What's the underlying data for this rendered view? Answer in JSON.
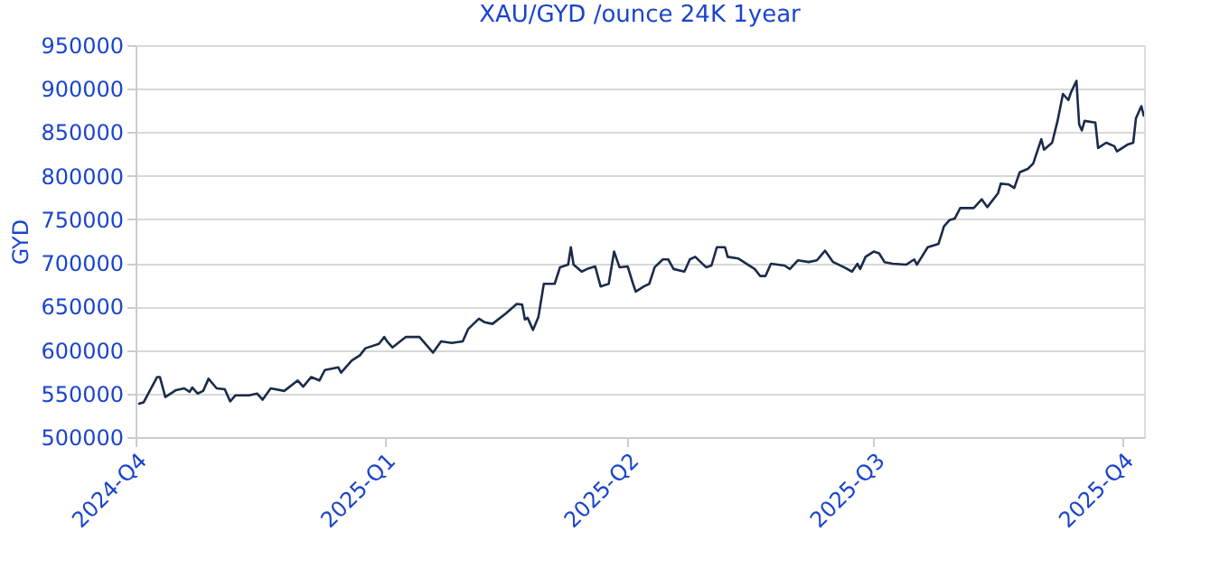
{
  "chart_data": {
    "type": "line",
    "title": "XAU/GYD /ounce 24K 1year",
    "ylabel": "GYD",
    "x": [
      "2024-10-02",
      "2024-10-04",
      "2024-10-09",
      "2024-10-10",
      "2024-10-12",
      "2024-10-16",
      "2024-10-19",
      "2024-10-21",
      "2024-10-22",
      "2024-10-24",
      "2024-10-26",
      "2024-10-28",
      "2024-10-31",
      "2024-11-03",
      "2024-11-05",
      "2024-11-07",
      "2024-11-12",
      "2024-11-15",
      "2024-11-17",
      "2024-11-20",
      "2024-11-25",
      "2024-11-30",
      "2024-12-02",
      "2024-12-05",
      "2024-12-08",
      "2024-12-10",
      "2024-12-15",
      "2024-12-16",
      "2024-12-20",
      "2024-12-23",
      "2024-12-25",
      "2024-12-30",
      "2025-01-01",
      "2025-01-02",
      "2025-01-04",
      "2025-01-09",
      "2025-01-14",
      "2025-01-19",
      "2025-01-22",
      "2025-01-26",
      "2025-01-30",
      "2025-02-01",
      "2025-02-05",
      "2025-02-07",
      "2025-02-10",
      "2025-02-15",
      "2025-02-19",
      "2025-02-21",
      "2025-02-22",
      "2025-02-23",
      "2025-02-25",
      "2025-02-27",
      "2025-03-01",
      "2025-03-05",
      "2025-03-07",
      "2025-03-10",
      "2025-03-11",
      "2025-03-12",
      "2025-03-15",
      "2025-03-17",
      "2025-03-20",
      "2025-03-22",
      "2025-03-25",
      "2025-03-27",
      "2025-03-29",
      "2025-04-01",
      "2025-04-03",
      "2025-04-04",
      "2025-04-07",
      "2025-04-09",
      "2025-04-11",
      "2025-04-14",
      "2025-04-16",
      "2025-04-18",
      "2025-04-22",
      "2025-04-24",
      "2025-04-26",
      "2025-04-30",
      "2025-05-02",
      "2025-05-04",
      "2025-05-07",
      "2025-05-08",
      "2025-05-12",
      "2025-05-18",
      "2025-05-20",
      "2025-05-22",
      "2025-05-24",
      "2025-05-29",
      "2025-05-31",
      "2025-06-03",
      "2025-06-07",
      "2025-06-10",
      "2025-06-13",
      "2025-06-16",
      "2025-06-20",
      "2025-06-23",
      "2025-06-25",
      "2025-06-26",
      "2025-06-28",
      "2025-07-01",
      "2025-07-03",
      "2025-07-05",
      "2025-07-08",
      "2025-07-13",
      "2025-07-16",
      "2025-07-17",
      "2025-07-21",
      "2025-07-25",
      "2025-07-27",
      "2025-07-29",
      "2025-07-31",
      "2025-08-02",
      "2025-08-07",
      "2025-08-10",
      "2025-08-12",
      "2025-08-16",
      "2025-08-17",
      "2025-08-20",
      "2025-08-22",
      "2025-08-24",
      "2025-08-27",
      "2025-08-29",
      "2025-09-01",
      "2025-09-02",
      "2025-09-05",
      "2025-09-07",
      "2025-09-09",
      "2025-09-11",
      "2025-09-12",
      "2025-09-14",
      "2025-09-15",
      "2025-09-16",
      "2025-09-17",
      "2025-09-21",
      "2025-09-22",
      "2025-09-25",
      "2025-09-28",
      "2025-09-29",
      "2025-10-03",
      "2025-10-05",
      "2025-10-06",
      "2025-10-08",
      "2025-10-09"
    ],
    "series": [
      {
        "color": "#1a2b4a",
        "values": [
          538000,
          540000,
          569000,
          569000,
          546000,
          554000,
          556000,
          552000,
          557000,
          550000,
          553000,
          567000,
          556000,
          555000,
          541000,
          548000,
          548000,
          550000,
          543000,
          556000,
          553000,
          565000,
          558000,
          569000,
          565000,
          577000,
          580000,
          574000,
          588000,
          594000,
          602000,
          607000,
          615000,
          610000,
          603000,
          615000,
          615000,
          597000,
          610000,
          608000,
          610000,
          624000,
          636000,
          632000,
          630000,
          642000,
          653000,
          652000,
          635000,
          637000,
          623000,
          638000,
          676000,
          676000,
          695000,
          698000,
          718000,
          698000,
          690000,
          693000,
          696000,
          673000,
          676000,
          713000,
          695000,
          696000,
          676000,
          667000,
          673000,
          676000,
          695000,
          704000,
          704000,
          693000,
          690000,
          704000,
          707000,
          695000,
          697000,
          718000,
          718000,
          707000,
          705000,
          693000,
          685000,
          685000,
          699000,
          697000,
          693000,
          703000,
          701000,
          703000,
          714000,
          701000,
          695000,
          690000,
          699000,
          693000,
          707000,
          713000,
          711000,
          701000,
          699000,
          698000,
          704000,
          698000,
          718000,
          722000,
          742000,
          749000,
          751000,
          763000,
          763000,
          773000,
          764000,
          780000,
          791000,
          790000,
          786000,
          804000,
          808000,
          814000,
          842000,
          830000,
          838000,
          863000,
          894000,
          887000,
          896000,
          909000,
          859000,
          852000,
          863000,
          861000,
          832000,
          838000,
          834000,
          828000,
          836000,
          838000,
          866000,
          880000,
          868000
        ]
      }
    ],
    "xlim": [
      "2024-10-01",
      "2025-10-09"
    ],
    "xticks": [
      {
        "value": "2024-10-01",
        "label": "2024-Q4"
      },
      {
        "value": "2025-01-01",
        "label": "2025-Q1"
      },
      {
        "value": "2025-04-01",
        "label": "2025-Q2"
      },
      {
        "value": "2025-07-01",
        "label": "2025-Q3"
      },
      {
        "value": "2025-10-01",
        "label": "2025-Q4"
      }
    ],
    "ylim": [
      500000,
      950000
    ],
    "yticks": [
      500000,
      550000,
      600000,
      650000,
      700000,
      750000,
      800000,
      850000,
      900000,
      950000
    ],
    "grid": "y",
    "legend": false,
    "marker": "none",
    "line_style": "solid"
  }
}
